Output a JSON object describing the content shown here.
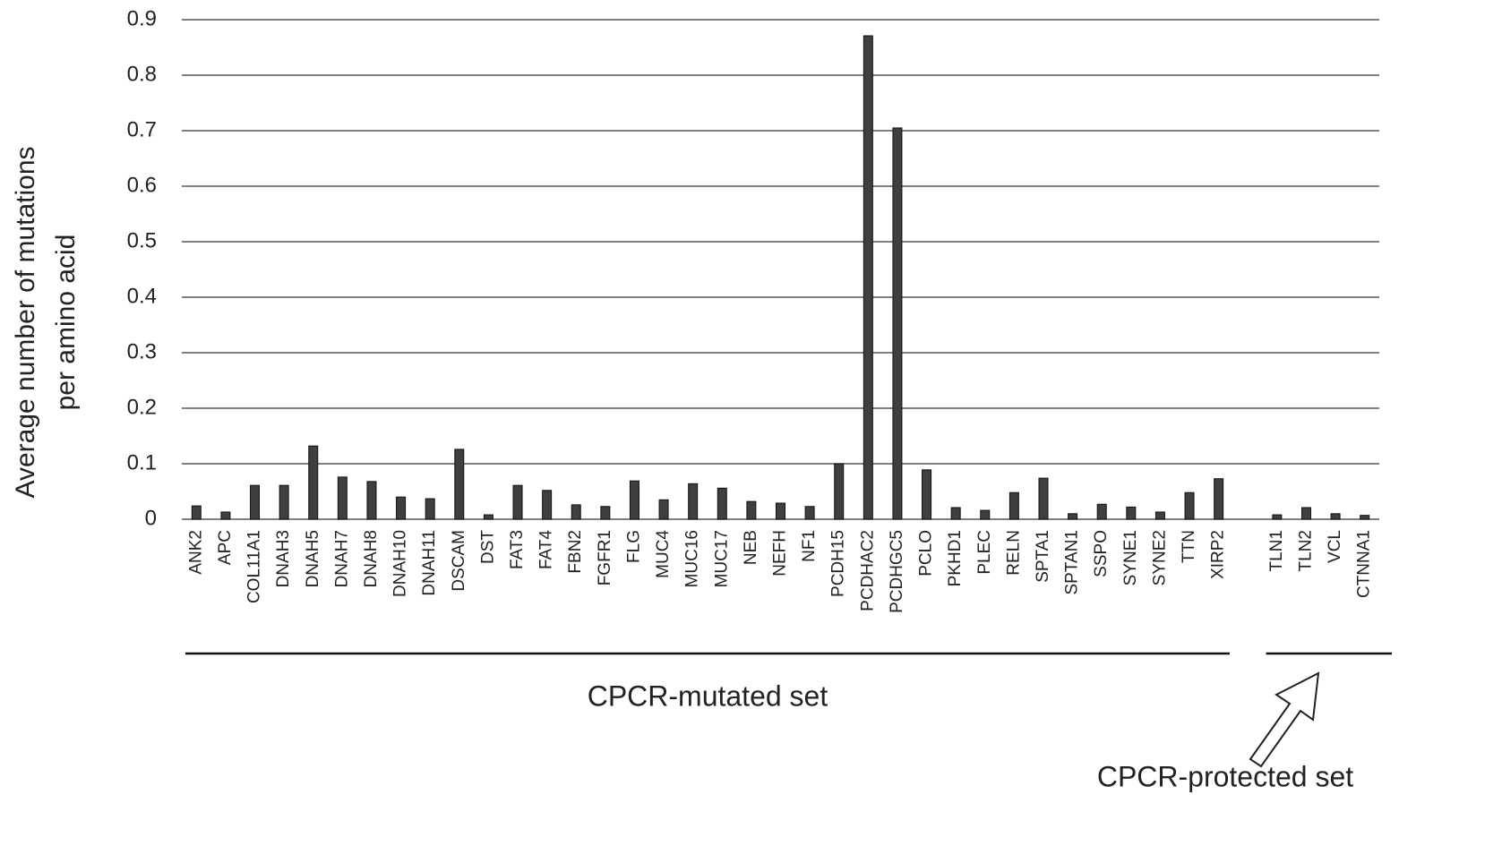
{
  "chart_data": {
    "type": "bar",
    "ylabel": [
      "Average number of mutations",
      "per amino acid"
    ],
    "categories": [
      "ANK2",
      "APC",
      "COL11A1",
      "DNAH3",
      "DNAH5",
      "DNAH7",
      "DNAH8",
      "DNAH10",
      "DNAH11",
      "DSCAM",
      "DST",
      "FAT3",
      "FAT4",
      "FBN2",
      "FGFR1",
      "FLG",
      "MUC4",
      "MUC16",
      "MUC17",
      "NEB",
      "NEFH",
      "NF1",
      "PCDH15",
      "PCDHAC2",
      "PCDHGC5",
      "PCLO",
      "PKHD1",
      "PLEC",
      "RELN",
      "SPTA1",
      "SPTAN1",
      "SSPO",
      "SYNE1",
      "SYNE2",
      "TTN",
      "XIRP2",
      null,
      "TLN1",
      "TLN2",
      "VCL",
      "CTNNA1"
    ],
    "values": [
      0.024,
      0.013,
      0.061,
      0.061,
      0.132,
      0.076,
      0.068,
      0.04,
      0.037,
      0.126,
      0.008,
      0.061,
      0.052,
      0.026,
      0.023,
      0.069,
      0.035,
      0.064,
      0.056,
      0.032,
      0.029,
      0.023,
      0.1,
      0.871,
      0.705,
      0.089,
      0.021,
      0.016,
      0.048,
      0.074,
      0.01,
      0.027,
      0.022,
      0.013,
      0.048,
      0.073,
      null,
      0.008,
      0.021,
      0.01,
      0.007
    ],
    "color": "#3f3f3f",
    "ylim": [
      0,
      0.9
    ],
    "yticks": [
      0,
      0.1,
      0.2,
      0.3,
      0.4,
      0.5,
      0.6,
      0.7,
      0.8,
      0.9
    ],
    "grid": true,
    "groups": [
      "CPCR-mutated set",
      "CPCR-protected set"
    ]
  }
}
